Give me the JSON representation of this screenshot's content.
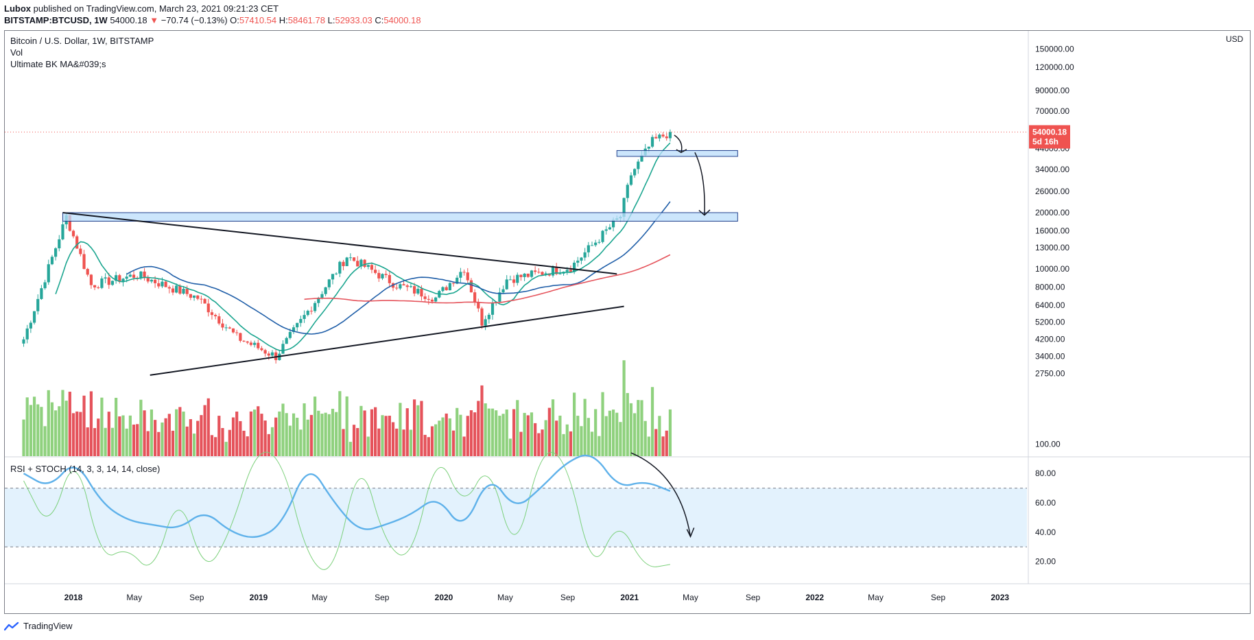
{
  "header": {
    "author": "Lubox",
    "published": "published on TradingView.com, March 23, 2021 09:21:23 CET",
    "symbol": "BITSTAMP:BTCUSD, 1W",
    "last": "54000.18",
    "change": "−70.74 (−0.13%)",
    "open_label": "O:",
    "open": "57410.54",
    "high_label": "H:",
    "high": "58461.78",
    "low_label": "L:",
    "low": "52933.03",
    "close_label": "C:",
    "close": "54000.18"
  },
  "legend": {
    "title": "Bitcoin / U.S. Dollar, 1W, BITSTAMP",
    "vol": "Vol",
    "ma": "Ultimate BK MA&#039;s",
    "osc": "RSI + STOCH (14, 3, 3, 14, 14, close)"
  },
  "footer": {
    "brand": "TradingView"
  },
  "colors": {
    "up": "#26a69a",
    "down": "#ef5350",
    "vol_up": "#8fd17e",
    "vol_down": "#e5535b",
    "ma_fast": "#1aa58f",
    "ma_mid": "#1f5ea8",
    "ma_slow": "#e5535b",
    "rsi": "#5eb1ea",
    "stoch": "#7bd07a",
    "band": "#e3f2fd",
    "zone": "#bbdefb"
  },
  "chart_data": [
    {
      "type": "candlestick",
      "title": "Bitcoin / U.S. Dollar, 1W, BITSTAMP",
      "ylabel": "USD",
      "y_scale": "log",
      "price_ticks": [
        "150000.00",
        "120000.00",
        "90000.00",
        "70000.00",
        "54000.18",
        "44000.00",
        "34000.00",
        "26000.00",
        "20000.00",
        "16000.00",
        "13000.00",
        "10000.00",
        "8000.00",
        "6400.00",
        "5200.00",
        "4200.00",
        "3400.00",
        "2750.00"
      ],
      "time_ticks": [
        "2018",
        "May",
        "Sep",
        "2019",
        "May",
        "Sep",
        "2020",
        "May",
        "Sep",
        "2021",
        "May",
        "Sep",
        "2022",
        "May",
        "Sep",
        "2023"
      ],
      "last_price": "54000.18",
      "countdown": "5d 16h",
      "weekly_close_approx": {
        "x": [
          "2017-09-25",
          "2017-12-18",
          "2018-02-05",
          "2018-05-07",
          "2018-09-03",
          "2018-11-19",
          "2019-02-04",
          "2019-06-24",
          "2019-09-30",
          "2019-12-16",
          "2020-02-10",
          "2020-03-16",
          "2020-05-04",
          "2020-09-07",
          "2020-12-14",
          "2021-01-04",
          "2021-02-15",
          "2021-03-22"
        ],
        "y": [
          4200,
          19000,
          8200,
          9300,
          7000,
          4300,
          3400,
          11700,
          8200,
          7000,
          10100,
          5200,
          8800,
          10200,
          19100,
          32000,
          48000,
          54000
        ]
      },
      "support_zones": [
        [
          18000,
          20000
        ],
        [
          40000,
          43000
        ]
      ],
      "annotations": [
        "descending trendline from 2017 high",
        "rising trendline from 2018 low",
        "projected drop arrows to 42000 and 19000"
      ]
    },
    {
      "type": "line",
      "title": "RSI + STOCH (14, 3, 3, 14, 14, close)",
      "y_ticks": [
        "100.00",
        "80.00",
        "60.00",
        "40.00",
        "20.00"
      ],
      "levels": [
        70,
        30
      ],
      "series": [
        {
          "name": "RSI",
          "values": [
            80,
            70,
            90,
            60,
            48,
            45,
            42,
            55,
            40,
            35,
            45,
            88,
            60,
            40,
            45,
            52,
            65,
            40,
            80,
            55,
            70,
            88,
            95,
            70,
            75,
            68
          ]
        },
        {
          "name": "STOCH",
          "values": [
            75,
            40,
            98,
            20,
            30,
            10,
            70,
            10,
            40,
            98,
            90,
            20,
            10,
            95,
            30,
            20,
            98,
            55,
            90,
            20,
            98,
            90,
            10,
            50,
            15,
            18
          ]
        }
      ]
    }
  ]
}
